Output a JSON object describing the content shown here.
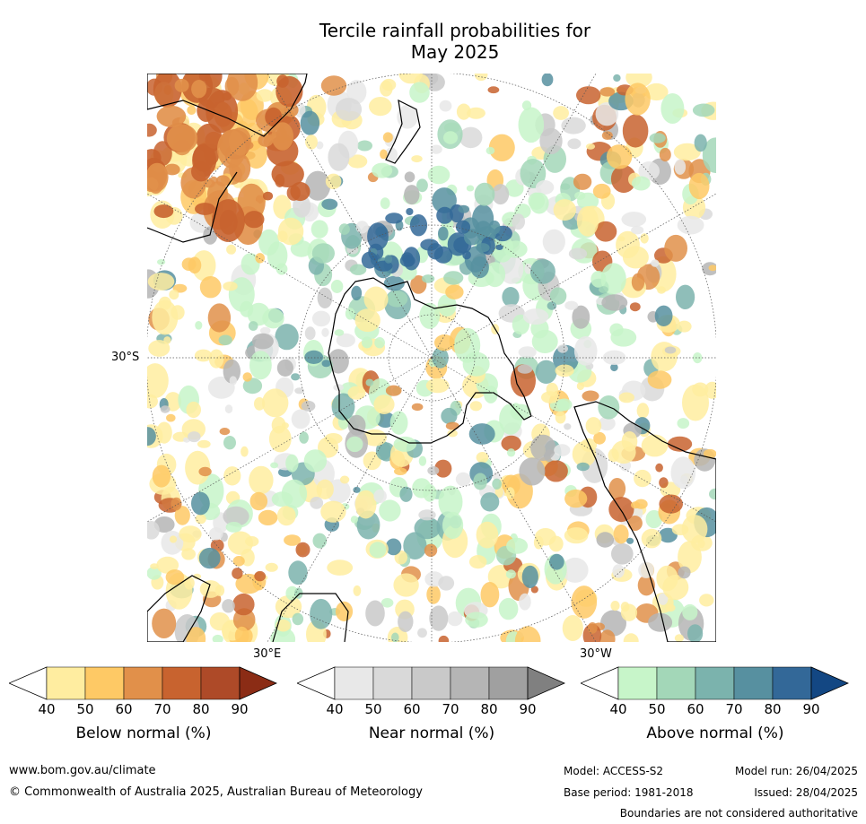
{
  "title_line1": "Tercile rainfall probabilities for",
  "title_line2": "May 2025",
  "map": {
    "projection": "south-polar-stereographic",
    "lat_label": "30°S",
    "lon_label_left": "30°E",
    "lon_label_right": "30°W",
    "colors": {
      "below": [
        "#ffffff",
        "#ffeda0",
        "#fec965",
        "#e1904a",
        "#c8632f",
        "#ae4a28",
        "#8b2c15"
      ],
      "near": [
        "#ffffff",
        "#e8e8e8",
        "#d9d9d9",
        "#c9c9c9",
        "#b5b5b5",
        "#a0a0a0",
        "#808080"
      ],
      "above": [
        "#ffffff",
        "#c7f5c9",
        "#a3d7b8",
        "#7bb3ad",
        "#5790a0",
        "#336898",
        "#134783"
      ]
    }
  },
  "legends": [
    {
      "key": "below",
      "title": "Below normal (%)",
      "ticks": [
        "40",
        "50",
        "60",
        "70",
        "80",
        "90"
      ]
    },
    {
      "key": "near",
      "title": "Near normal (%)",
      "ticks": [
        "40",
        "50",
        "60",
        "70",
        "80",
        "90"
      ]
    },
    {
      "key": "above",
      "title": "Above normal (%)",
      "ticks": [
        "40",
        "50",
        "60",
        "70",
        "80",
        "90"
      ]
    }
  ],
  "footer": {
    "website": "www.bom.gov.au/climate",
    "copyright": "© Commonwealth of Australia 2025, Australian Bureau of Meteorology",
    "model": "Model: ACCESS-S2",
    "model_run": "Model run: 26/04/2025",
    "base_period": "Base period: 1981-2018",
    "issued": "Issued: 28/04/2025",
    "disclaimer": "Boundaries are not considered authoritative"
  }
}
